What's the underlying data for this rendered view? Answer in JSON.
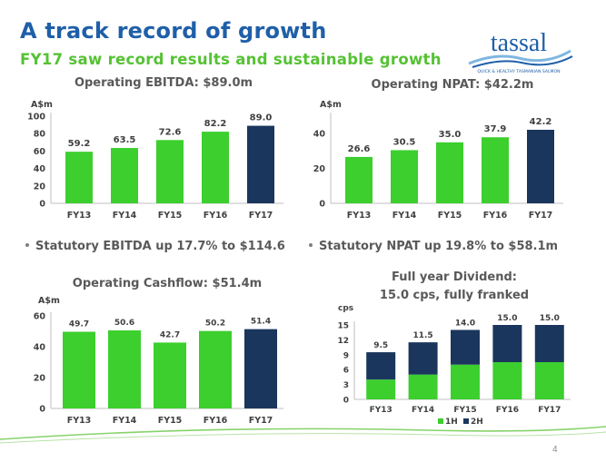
{
  "header": {
    "title": "A track record of growth",
    "subtitle": "FY17 saw record results and sustainable growth"
  },
  "logo": {
    "name": "tassal",
    "tagline": "QUICK & HEALTHY TASMANIAN SALMON"
  },
  "bullets": {
    "ebitda": "Statutory EBITDA up 17.7% to $114.6",
    "npat": "Statutory NPAT up 19.8% to $58.1m"
  },
  "page_number": "4",
  "colors": {
    "bar_green": "#3ccf2e",
    "bar_navy": "#1b365d",
    "title_blue": "#1f5fa8",
    "subtitle_green": "#55c234",
    "text_grey": "#595959"
  },
  "chart_data": [
    {
      "id": "ebitda",
      "type": "bar",
      "title": "Operating EBITDA: $89.0m",
      "ylabel": "A$m",
      "categories": [
        "FY13",
        "FY14",
        "FY15",
        "FY16",
        "FY17"
      ],
      "values": [
        59.2,
        63.5,
        72.6,
        82.2,
        89.0
      ],
      "labels": [
        "59.2",
        "63.5",
        "72.6",
        "82.2",
        "89.0"
      ],
      "ylim": [
        0,
        100
      ],
      "yticks": [
        "0",
        "20",
        "40",
        "60",
        "80",
        "100"
      ],
      "highlight_last": true
    },
    {
      "id": "npat",
      "type": "bar",
      "title": "Operating NPAT: $42.2m",
      "ylabel": "A$m",
      "categories": [
        "FY13",
        "FY14",
        "FY15",
        "FY16",
        "FY17"
      ],
      "values": [
        26.6,
        30.5,
        35.0,
        37.9,
        42.2
      ],
      "labels": [
        "26.6",
        "30.5",
        "35.0",
        "37.9",
        "42.2"
      ],
      "ylim": [
        0,
        50
      ],
      "yticks": [
        "0",
        "20",
        "40"
      ],
      "highlight_last": true
    },
    {
      "id": "cashflow",
      "type": "bar",
      "title": "Operating Cashflow: $51.4m",
      "ylabel": "A$m",
      "categories": [
        "FY13",
        "FY14",
        "FY15",
        "FY16",
        "FY17"
      ],
      "values": [
        49.7,
        50.6,
        42.7,
        50.2,
        51.4
      ],
      "labels": [
        "49.7",
        "50.6",
        "42.7",
        "50.2",
        "51.4"
      ],
      "ylim": [
        0,
        60
      ],
      "yticks": [
        "0",
        "20",
        "40",
        "60"
      ],
      "highlight_last": true
    },
    {
      "id": "dividend",
      "type": "bar",
      "stacked": true,
      "title_line1": "Full year Dividend:",
      "title_line2": "15.0 cps, fully franked",
      "ylabel": "cps",
      "categories": [
        "FY13",
        "FY14",
        "FY15",
        "FY16",
        "FY17"
      ],
      "series": [
        {
          "name": "1H",
          "values": [
            4.0,
            5.0,
            7.0,
            7.5,
            7.5
          ]
        },
        {
          "name": "2H",
          "values": [
            5.5,
            6.5,
            7.0,
            7.5,
            7.5
          ]
        }
      ],
      "totals": [
        "9.5",
        "11.5",
        "14.0",
        "15.0",
        "15.0"
      ],
      "ylim": [
        0,
        15
      ],
      "yticks": [
        "0",
        "3",
        "6",
        "9",
        "12",
        "15"
      ],
      "legend_position": "bottom"
    }
  ]
}
